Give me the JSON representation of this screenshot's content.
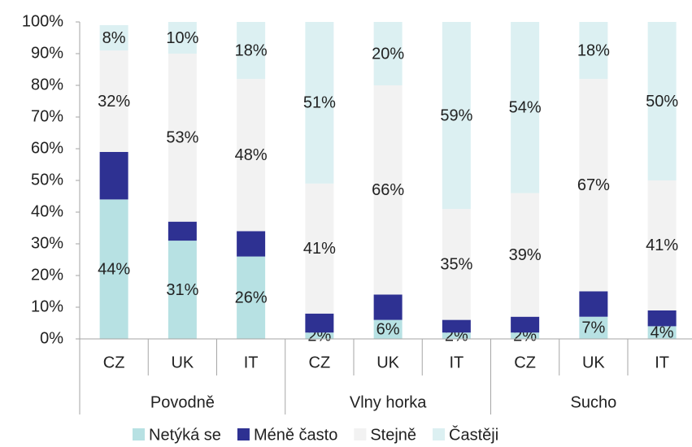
{
  "chart_data": {
    "type": "stacked_bar",
    "groups": [
      {
        "name": "Povodně",
        "categories": [
          "CZ",
          "UK",
          "IT"
        ]
      },
      {
        "name": "Vlny horka",
        "categories": [
          "CZ",
          "UK",
          "IT"
        ]
      },
      {
        "name": "Sucho",
        "categories": [
          "CZ",
          "UK",
          "IT"
        ]
      }
    ],
    "series": [
      {
        "name": "Netýká se",
        "color": "#b7e1e3",
        "values": [
          44,
          31,
          26,
          2,
          6,
          2,
          2,
          7,
          4
        ],
        "value_labels": [
          "44%",
          "31%",
          "26%",
          "2%",
          "6%",
          "2%",
          "2%",
          "7%",
          "4%"
        ]
      },
      {
        "name": "Méně často",
        "color": "#2e3192",
        "values": [
          15,
          6,
          8,
          6,
          8,
          4,
          5,
          8,
          5
        ]
      },
      {
        "name": "Stejně",
        "color": "#f2f2f2",
        "values": [
          32,
          53,
          48,
          41,
          66,
          35,
          39,
          67,
          41
        ],
        "value_labels": [
          "32%",
          "53%",
          "48%",
          "41%",
          "66%",
          "35%",
          "39%",
          "67%",
          "41%"
        ]
      },
      {
        "name": "Častěji",
        "color": "#dcf0f2",
        "values": [
          8,
          10,
          18,
          51,
          20,
          59,
          54,
          18,
          50
        ],
        "value_labels": [
          "8%",
          "10%",
          "18%",
          "51%",
          "20%",
          "59%",
          "54%",
          "18%",
          "50%"
        ]
      }
    ],
    "ylim": [
      0,
      100
    ],
    "yticks": [
      {
        "value": 0,
        "label": "0%"
      },
      {
        "value": 10,
        "label": "10%"
      },
      {
        "value": 20,
        "label": "20%"
      },
      {
        "value": 30,
        "label": "30%"
      },
      {
        "value": 40,
        "label": "40%"
      },
      {
        "value": 50,
        "label": "50%"
      },
      {
        "value": 60,
        "label": "60%"
      },
      {
        "value": 70,
        "label": "70%"
      },
      {
        "value": 80,
        "label": "80%"
      },
      {
        "value": 90,
        "label": "90%"
      },
      {
        "value": 100,
        "label": "100%"
      }
    ],
    "grid": false,
    "legend": "bottom"
  }
}
